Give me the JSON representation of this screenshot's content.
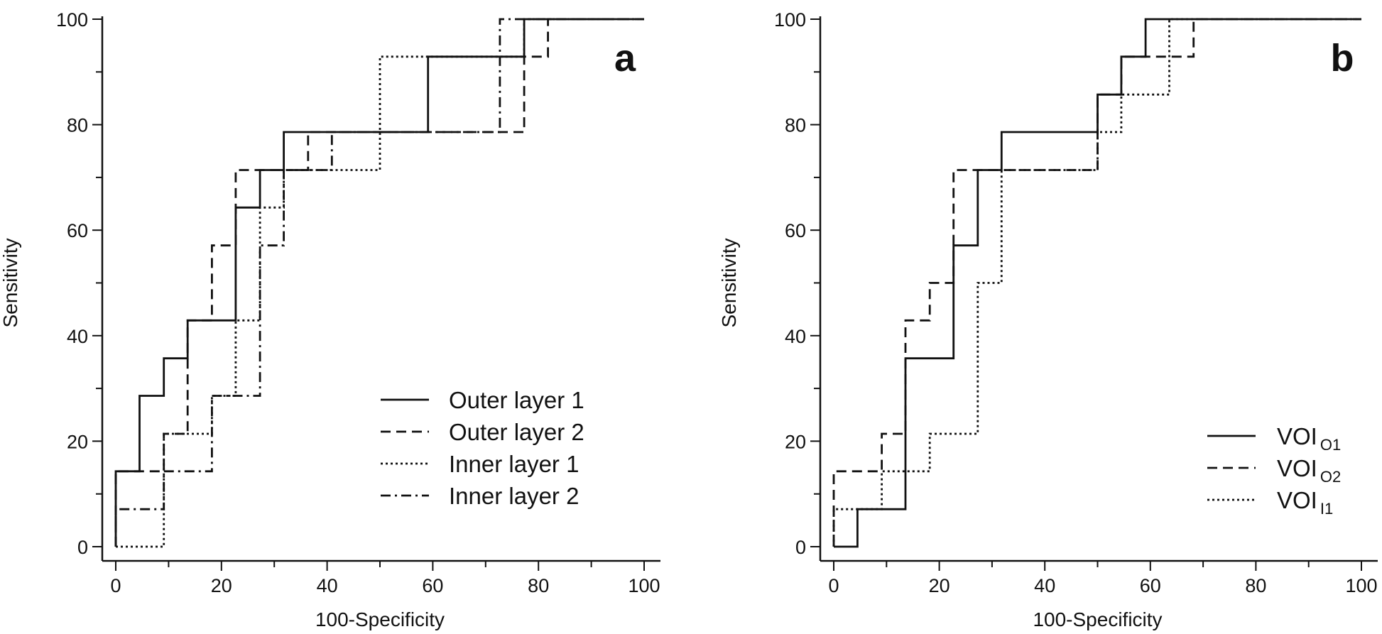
{
  "chart_data": [
    {
      "type": "line",
      "panel_label": "a",
      "xlabel": "100-Specificity",
      "ylabel": "Sensitivity",
      "xlim": [
        0,
        100
      ],
      "ylim": [
        0,
        100
      ],
      "xticks": [
        0,
        20,
        40,
        60,
        80,
        100
      ],
      "yticks": [
        0,
        20,
        40,
        60,
        80,
        100
      ],
      "grid": false,
      "legend_position": "bottom-right",
      "series": [
        {
          "name": "Outer layer 1",
          "line_style": "solid",
          "x": [
            0,
            0,
            4.5,
            4.5,
            9.1,
            9.1,
            13.6,
            13.6,
            22.7,
            22.7,
            27.3,
            27.3,
            31.8,
            31.8,
            59.1,
            59.1,
            77.3,
            77.3,
            100
          ],
          "y": [
            0,
            14.3,
            14.3,
            28.6,
            28.6,
            35.7,
            35.7,
            42.9,
            42.9,
            64.3,
            64.3,
            71.4,
            71.4,
            78.6,
            78.6,
            92.9,
            92.9,
            100,
            100
          ]
        },
        {
          "name": "Outer layer 2",
          "line_style": "dashed",
          "x": [
            0,
            0,
            9.1,
            9.1,
            13.6,
            13.6,
            18.2,
            18.2,
            22.7,
            22.7,
            36.4,
            36.4,
            59.1,
            59.1,
            77.3,
            77.3,
            81.8,
            81.8,
            100
          ],
          "y": [
            0,
            14.3,
            14.3,
            21.4,
            21.4,
            42.9,
            42.9,
            57.1,
            57.1,
            71.4,
            71.4,
            78.6,
            78.6,
            78.6,
            78.6,
            92.9,
            92.9,
            100,
            100
          ]
        },
        {
          "name": "Inner layer 1",
          "line_style": "dotted",
          "x": [
            0,
            9.1,
            9.1,
            18.2,
            18.2,
            22.7,
            22.7,
            27.3,
            27.3,
            31.8,
            31.8,
            40.9,
            40.9,
            50,
            50,
            59.1,
            59.1,
            77.3,
            77.3,
            100
          ],
          "y": [
            0,
            0,
            21.4,
            21.4,
            28.6,
            28.6,
            42.9,
            42.9,
            64.3,
            64.3,
            71.4,
            71.4,
            71.4,
            71.4,
            92.9,
            92.9,
            92.9,
            92.9,
            100,
            100
          ]
        },
        {
          "name": "Inner layer 2",
          "line_style": "dashdot",
          "x": [
            0,
            0,
            9.1,
            9.1,
            18.2,
            18.2,
            27.3,
            27.3,
            31.8,
            31.8,
            40.9,
            40.9,
            72.7,
            72.7,
            100
          ],
          "y": [
            0,
            7.1,
            7.1,
            14.3,
            14.3,
            28.6,
            28.6,
            57.1,
            57.1,
            71.4,
            71.4,
            78.6,
            78.6,
            100,
            100
          ]
        }
      ]
    },
    {
      "type": "line",
      "panel_label": "b",
      "xlabel": "100-Specificity",
      "ylabel": "Sensitivity",
      "xlim": [
        0,
        100
      ],
      "ylim": [
        0,
        100
      ],
      "xticks": [
        0,
        20,
        40,
        60,
        80,
        100
      ],
      "yticks": [
        0,
        20,
        40,
        60,
        80,
        100
      ],
      "grid": false,
      "legend_position": "bottom-right",
      "series": [
        {
          "name": "VOI",
          "name_subscript": "O1",
          "line_style": "solid",
          "x": [
            0,
            4.5,
            4.5,
            13.6,
            13.6,
            22.7,
            22.7,
            27.3,
            27.3,
            31.8,
            31.8,
            50,
            50,
            54.5,
            54.5,
            59.1,
            59.1,
            100
          ],
          "y": [
            0,
            0,
            7.1,
            7.1,
            35.7,
            35.7,
            57.1,
            57.1,
            71.4,
            71.4,
            78.6,
            78.6,
            85.7,
            85.7,
            92.9,
            92.9,
            100,
            100
          ]
        },
        {
          "name": "VOI",
          "name_subscript": "O2",
          "line_style": "dashed",
          "x": [
            0,
            0,
            9.1,
            9.1,
            13.6,
            13.6,
            18.2,
            18.2,
            22.7,
            22.7,
            50,
            50,
            54.5,
            54.5,
            68.2,
            68.2,
            100
          ],
          "y": [
            0,
            14.3,
            14.3,
            21.4,
            21.4,
            42.9,
            42.9,
            50,
            50,
            71.4,
            71.4,
            85.7,
            85.7,
            92.9,
            92.9,
            100,
            100
          ]
        },
        {
          "name": "VOI",
          "name_subscript": "I1",
          "line_style": "dotted",
          "x": [
            0,
            0,
            9.1,
            9.1,
            18.2,
            18.2,
            27.3,
            27.3,
            31.8,
            31.8,
            50,
            50,
            54.5,
            54.5,
            63.6,
            63.6,
            100
          ],
          "y": [
            0,
            7.1,
            7.1,
            14.3,
            14.3,
            21.4,
            21.4,
            50,
            50,
            71.4,
            71.4,
            78.6,
            78.6,
            85.7,
            85.7,
            100,
            100
          ]
        }
      ]
    }
  ]
}
